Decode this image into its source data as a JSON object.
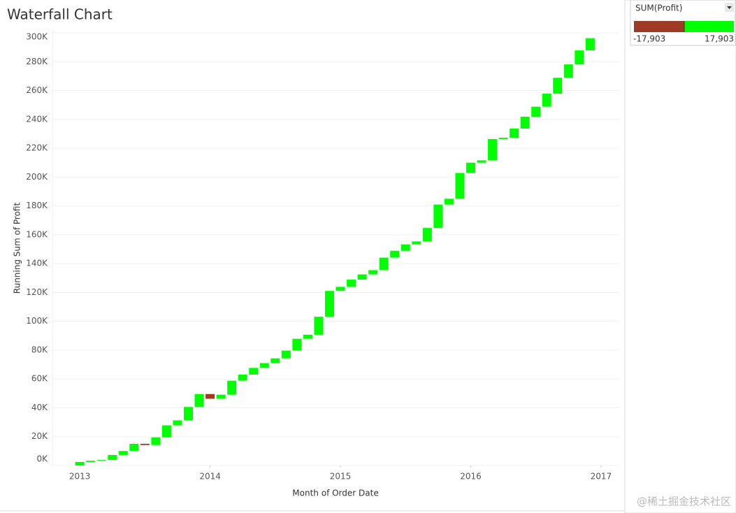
{
  "chart_data": {
    "type": "waterfall",
    "title": "Waterfall Chart",
    "x_label": "Month of Order Date",
    "y_label": "Running Sum of Profit",
    "categories": [
      null,
      null,
      null,
      null,
      null,
      null,
      null,
      null,
      null,
      null,
      null,
      null,
      null,
      null,
      null,
      null,
      null,
      null,
      null,
      null,
      null,
      null,
      null,
      null,
      null,
      null,
      null,
      null,
      null,
      null,
      null,
      null,
      null,
      null,
      null,
      null,
      null,
      null,
      null,
      null,
      null,
      null,
      null,
      null,
      null,
      null,
      null,
      null
    ],
    "values": [
      2450,
      862,
      499,
      3489,
      2739,
      4977,
      -841,
      5318,
      8328,
      3448,
      9292,
      8984,
      -3281,
      2814,
      9732,
      4188,
      4668,
      3336,
      3289,
      5356,
      8209,
      2817,
      12475,
      17903,
      2825,
      5005,
      3612,
      2978,
      8662,
      4750,
      4433,
      2062,
      9329,
      16243,
      4011,
      17885,
      7140,
      1614,
      14752,
      933,
      6343,
      8223,
      6953,
      9041,
      10992,
      9275,
      9690,
      8483
    ],
    "positive_color": "#00ff00",
    "negative_color": "#9e3a26",
    "xlim": [
      2012.79,
      2017.14
    ],
    "xticks": [
      2013,
      2014,
      2015,
      2016,
      2017
    ],
    "ylim": [
      0,
      300000
    ],
    "yticks": [
      {
        "value": 0,
        "label": "0K"
      },
      {
        "value": 20000,
        "label": "20K"
      },
      {
        "value": 40000,
        "label": "40K"
      },
      {
        "value": 60000,
        "label": "60K"
      },
      {
        "value": 80000,
        "label": "80K"
      },
      {
        "value": 100000,
        "label": "100K"
      },
      {
        "value": 120000,
        "label": "120K"
      },
      {
        "value": 140000,
        "label": "140K"
      },
      {
        "value": 160000,
        "label": "160K"
      },
      {
        "value": 180000,
        "label": "180K"
      },
      {
        "value": 200000,
        "label": "200K"
      },
      {
        "value": 220000,
        "label": "220K"
      },
      {
        "value": 240000,
        "label": "240K"
      },
      {
        "value": 260000,
        "label": "260K"
      },
      {
        "value": 280000,
        "label": "280K"
      },
      {
        "value": 300000,
        "label": "300K"
      }
    ],
    "grid": true,
    "legend": {
      "title": "SUM(Profit)",
      "min_label": "-17,903",
      "max_label": "17,903"
    },
    "watermark": "@稀土掘金技术社区"
  }
}
